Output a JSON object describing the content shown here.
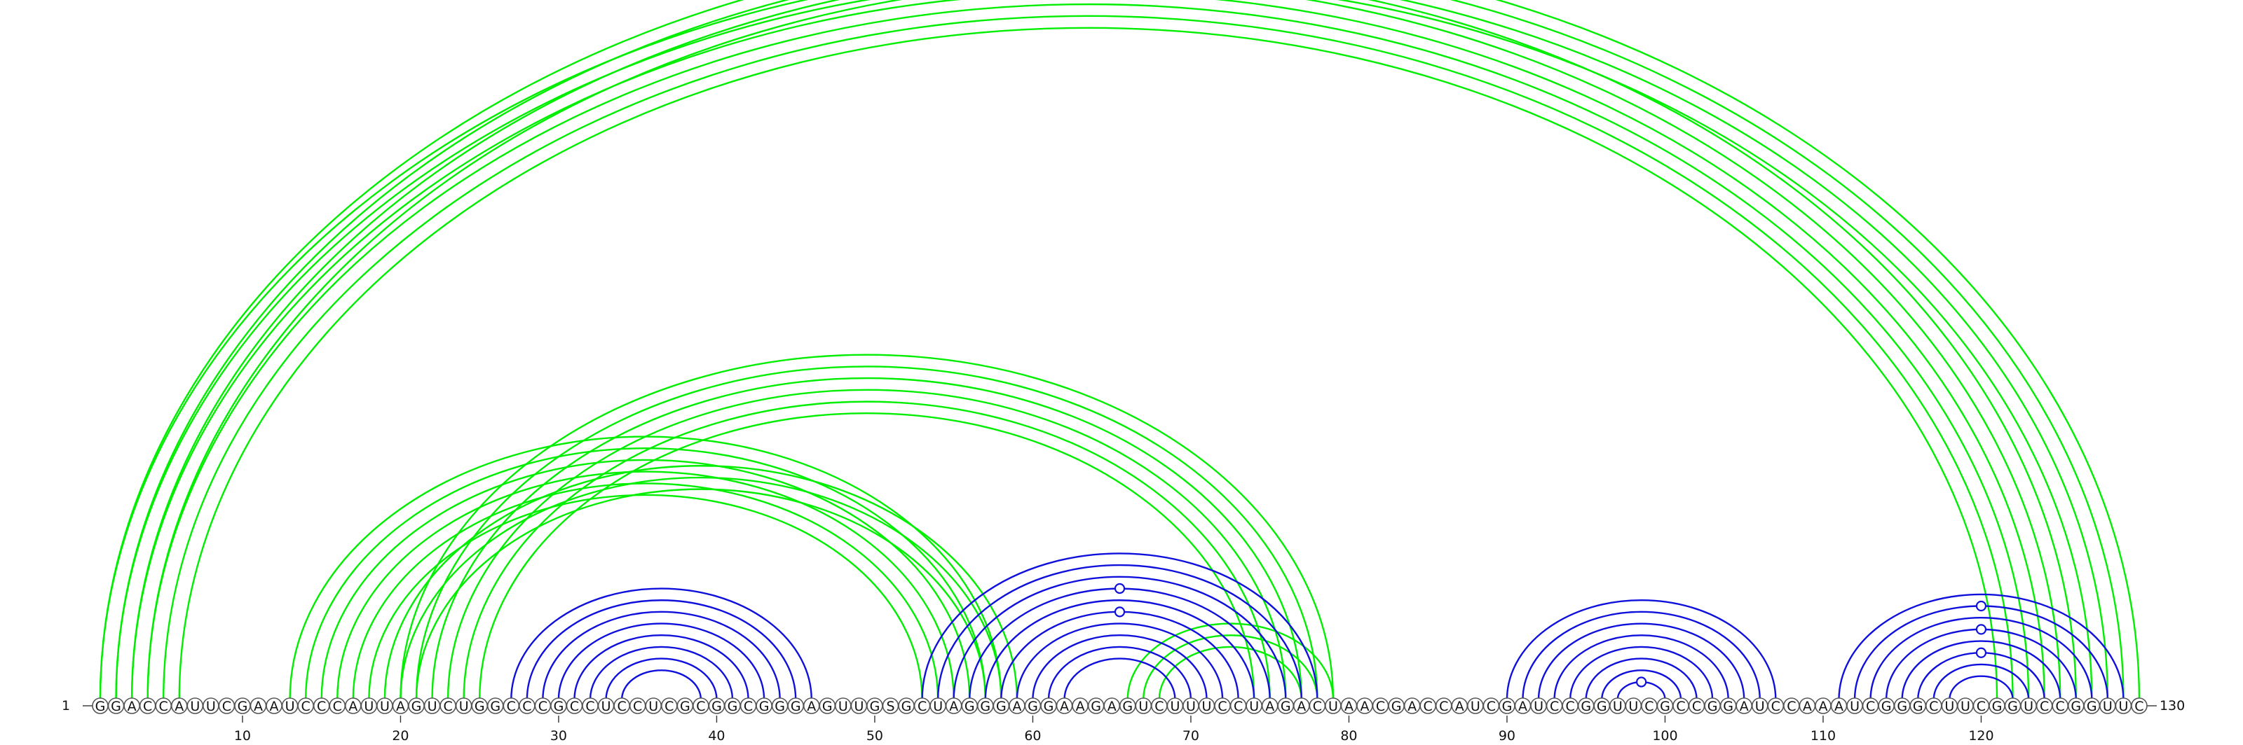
{
  "diagram": {
    "type": "rna-arc-diagram",
    "sequence": "GGACCAUUCGAAUCCCAUUAGUCUGGCCCGCCUCCUCGCGGCGGGAGUUGSGCUAGGGAGGAAGAGUCUUUCCUAGACUAACGACCAUCGAUCCGGUUCGCCGGAUCCAAAUCGGGCUUCGGUCCGGUUC",
    "start_label": "1",
    "end_label": "130",
    "ticks": [
      10,
      20,
      30,
      40,
      50,
      60,
      70,
      80,
      90,
      100,
      110,
      120
    ],
    "colors": {
      "green": "#00ee00",
      "blue": "#1010dd"
    },
    "arc_groups": [
      {
        "color": "green",
        "side": "up",
        "pairs": [
          [
            1,
            126
          ],
          [
            2,
            125
          ],
          [
            3,
            124
          ],
          [
            4,
            123
          ],
          [
            5,
            122
          ],
          [
            6,
            121
          ]
        ]
      },
      {
        "color": "green",
        "side": "up",
        "pairs": [
          [
            1,
            130
          ],
          [
            2,
            129
          ],
          [
            3,
            128
          ],
          [
            4,
            127
          ]
        ]
      },
      {
        "color": "green",
        "side": "up",
        "pairs": [
          [
            13,
            58
          ],
          [
            14,
            57
          ],
          [
            15,
            56
          ],
          [
            16,
            55
          ],
          [
            17,
            54
          ],
          [
            18,
            53
          ]
        ]
      },
      {
        "color": "green",
        "side": "up",
        "pairs": [
          [
            19,
            59
          ],
          [
            20,
            58
          ],
          [
            21,
            57
          ]
        ]
      },
      {
        "color": "green",
        "side": "up",
        "pairs": [
          [
            20,
            79
          ],
          [
            21,
            78
          ],
          [
            22,
            77
          ],
          [
            23,
            76
          ],
          [
            24,
            75
          ],
          [
            25,
            74
          ]
        ]
      },
      {
        "color": "green",
        "side": "up",
        "pairs": [
          [
            66,
            79
          ],
          [
            67,
            78
          ],
          [
            68,
            77
          ]
        ]
      },
      {
        "color": "blue",
        "side": "up",
        "pairs": [
          [
            27,
            46
          ],
          [
            28,
            45
          ],
          [
            29,
            44
          ],
          [
            30,
            43
          ],
          [
            31,
            42
          ],
          [
            32,
            41
          ],
          [
            33,
            40
          ],
          [
            34,
            39
          ]
        ]
      },
      {
        "color": "blue",
        "side": "up",
        "pairs": [
          [
            53,
            78
          ],
          [
            54,
            77
          ],
          [
            55,
            76
          ],
          [
            56,
            75
          ],
          [
            57,
            74
          ],
          [
            58,
            73
          ],
          [
            59,
            72
          ],
          [
            60,
            71
          ],
          [
            61,
            70
          ],
          [
            62,
            69
          ]
        ]
      },
      {
        "color": "blue",
        "side": "up",
        "pairs": [
          [
            90,
            107
          ],
          [
            91,
            106
          ],
          [
            92,
            105
          ],
          [
            93,
            104
          ],
          [
            94,
            103
          ],
          [
            95,
            102
          ],
          [
            96,
            101
          ],
          [
            97,
            100
          ]
        ]
      },
      {
        "color": "blue",
        "side": "up",
        "pairs": [
          [
            111,
            129
          ],
          [
            112,
            128
          ],
          [
            113,
            127
          ],
          [
            114,
            126
          ],
          [
            115,
            125
          ],
          [
            116,
            124
          ],
          [
            117,
            123
          ],
          [
            118,
            122
          ]
        ]
      }
    ],
    "markers": [
      {
        "color": "green",
        "pair": [
          1,
          130
        ]
      },
      {
        "color": "blue",
        "pair": [
          56,
          75
        ]
      },
      {
        "color": "blue",
        "pair": [
          58,
          73
        ]
      },
      {
        "color": "blue",
        "pair": [
          97,
          100
        ]
      },
      {
        "color": "blue",
        "pair": [
          112,
          128
        ]
      },
      {
        "color": "blue",
        "pair": [
          114,
          126
        ]
      },
      {
        "color": "blue",
        "pair": [
          116,
          124
        ]
      }
    ]
  }
}
